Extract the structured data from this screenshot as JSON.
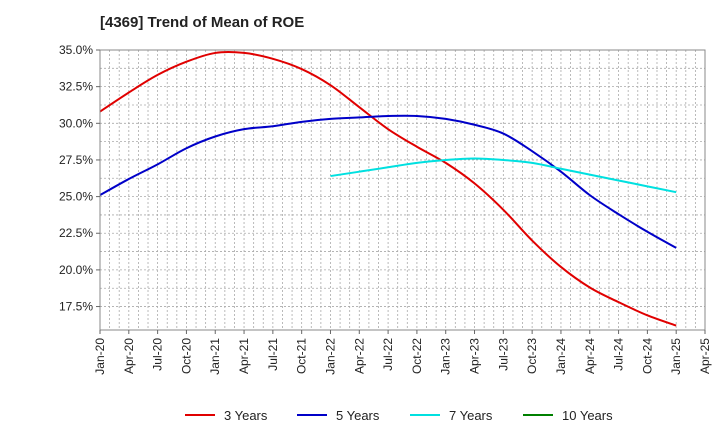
{
  "chart_data": {
    "type": "line",
    "title": "[4369]  Trend of Mean of ROE",
    "xlabel": "",
    "ylabel": "",
    "x_ticks": [
      "Jan-20",
      "Apr-20",
      "Jul-20",
      "Oct-20",
      "Jan-21",
      "Apr-21",
      "Jul-21",
      "Oct-21",
      "Jan-22",
      "Apr-22",
      "Jul-22",
      "Oct-22",
      "Jan-23",
      "Apr-23",
      "Jul-23",
      "Oct-23",
      "Jan-24",
      "Apr-24",
      "Jul-24",
      "Oct-24",
      "Jan-25",
      "Apr-25"
    ],
    "y_ticks": [
      "17.5%",
      "20.0%",
      "22.5%",
      "25.0%",
      "27.5%",
      "30.0%",
      "32.5%",
      "35.0%"
    ],
    "y_tick_values": [
      17.5,
      20.0,
      22.5,
      25.0,
      27.5,
      30.0,
      32.5,
      35.0
    ],
    "ylim": [
      15.9,
      35.0
    ],
    "x_unit": "quarter",
    "grid": true,
    "legend_position": "bottom",
    "series": [
      {
        "name": "3 Years",
        "color": "#e00000",
        "x": [
          "Jan-20",
          "Apr-20",
          "Jul-20",
          "Oct-20",
          "Jan-21",
          "Apr-21",
          "Jul-21",
          "Oct-21",
          "Jan-22",
          "Apr-22",
          "Jul-22",
          "Oct-22",
          "Jan-23",
          "Apr-23",
          "Jul-23",
          "Oct-23",
          "Jan-24",
          "Apr-24",
          "Jul-24",
          "Oct-24",
          "Jan-25"
        ],
        "values": [
          30.8,
          32.1,
          33.3,
          34.2,
          34.8,
          34.8,
          34.4,
          33.7,
          32.6,
          31.1,
          29.6,
          28.4,
          27.3,
          25.9,
          24.1,
          22.0,
          20.2,
          18.8,
          17.8,
          16.9,
          16.2
        ]
      },
      {
        "name": "5 Years",
        "color": "#0000c8",
        "x": [
          "Jan-20",
          "Apr-20",
          "Jul-20",
          "Oct-20",
          "Jan-21",
          "Apr-21",
          "Jul-21",
          "Oct-21",
          "Jan-22",
          "Apr-22",
          "Jul-22",
          "Oct-22",
          "Jan-23",
          "Apr-23",
          "Jul-23",
          "Oct-23",
          "Jan-24",
          "Apr-24",
          "Jul-24",
          "Oct-24",
          "Jan-25"
        ],
        "values": [
          25.1,
          26.2,
          27.2,
          28.3,
          29.1,
          29.6,
          29.8,
          30.1,
          30.3,
          30.4,
          30.5,
          30.5,
          30.3,
          29.9,
          29.3,
          28.1,
          26.7,
          25.1,
          23.8,
          22.6,
          21.5
        ]
      },
      {
        "name": "7 Years",
        "color": "#00e0e0",
        "x": [
          "Jan-22",
          "Apr-22",
          "Jul-22",
          "Oct-22",
          "Jan-23",
          "Apr-23",
          "Jul-23",
          "Oct-23",
          "Jan-24",
          "Apr-24",
          "Jul-24",
          "Oct-24",
          "Jan-25"
        ],
        "values": [
          26.4,
          26.7,
          27.0,
          27.3,
          27.5,
          27.6,
          27.5,
          27.3,
          26.9,
          26.5,
          26.1,
          25.7,
          25.3
        ]
      },
      {
        "name": "10 Years",
        "color": "#008000",
        "x": [],
        "values": []
      }
    ]
  }
}
